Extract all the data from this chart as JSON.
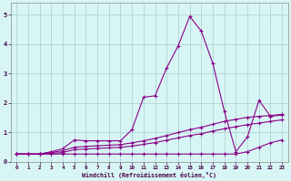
{
  "xlabel": "Windchill (Refroidissement éolien,°C)",
  "bg_color": "#d8f5f5",
  "grid_color": "#aed4d4",
  "line_color": "#880088",
  "xlim": [
    -0.5,
    23.5
  ],
  "ylim": [
    0,
    5.4
  ],
  "xticks": [
    0,
    1,
    2,
    3,
    4,
    5,
    6,
    7,
    8,
    9,
    10,
    11,
    12,
    13,
    14,
    15,
    16,
    17,
    18,
    19,
    20,
    21,
    22,
    23
  ],
  "yticks": [
    0,
    1,
    2,
    3,
    4,
    5
  ],
  "line1_x": [
    0,
    1,
    2,
    3,
    4,
    5,
    6,
    7,
    8,
    9,
    10,
    11,
    12,
    13,
    14,
    15,
    16,
    17,
    18,
    19,
    20,
    21,
    22,
    23
  ],
  "line1_y": [
    0.27,
    0.27,
    0.27,
    0.35,
    0.45,
    0.75,
    0.72,
    0.72,
    0.72,
    0.72,
    1.1,
    2.2,
    2.25,
    3.2,
    3.95,
    4.95,
    4.45,
    3.35,
    1.72,
    0.35,
    0.85,
    2.1,
    1.55,
    1.6
  ],
  "line2_x": [
    0,
    1,
    2,
    3,
    4,
    5,
    6,
    7,
    8,
    9,
    10,
    11,
    12,
    13,
    14,
    15,
    16,
    17,
    18,
    19,
    20,
    21,
    22,
    23
  ],
  "line2_y": [
    0.27,
    0.27,
    0.27,
    0.32,
    0.38,
    0.5,
    0.53,
    0.55,
    0.57,
    0.59,
    0.65,
    0.72,
    0.8,
    0.9,
    1.0,
    1.1,
    1.18,
    1.28,
    1.38,
    1.45,
    1.52,
    1.55,
    1.58,
    1.62
  ],
  "line3_x": [
    0,
    1,
    2,
    3,
    4,
    5,
    6,
    7,
    8,
    9,
    10,
    11,
    12,
    13,
    14,
    15,
    16,
    17,
    18,
    19,
    20,
    21,
    22,
    23
  ],
  "line3_y": [
    0.27,
    0.27,
    0.27,
    0.29,
    0.32,
    0.42,
    0.44,
    0.46,
    0.48,
    0.5,
    0.54,
    0.6,
    0.66,
    0.74,
    0.82,
    0.9,
    0.96,
    1.05,
    1.13,
    1.2,
    1.27,
    1.32,
    1.38,
    1.43
  ],
  "line4_x": [
    0,
    1,
    2,
    3,
    4,
    5,
    6,
    7,
    8,
    9,
    10,
    11,
    12,
    13,
    14,
    15,
    16,
    17,
    18,
    19,
    20,
    21,
    22,
    23
  ],
  "line4_y": [
    0.27,
    0.27,
    0.27,
    0.27,
    0.27,
    0.27,
    0.27,
    0.27,
    0.27,
    0.27,
    0.27,
    0.27,
    0.27,
    0.27,
    0.27,
    0.27,
    0.27,
    0.27,
    0.27,
    0.27,
    0.35,
    0.5,
    0.65,
    0.75
  ]
}
